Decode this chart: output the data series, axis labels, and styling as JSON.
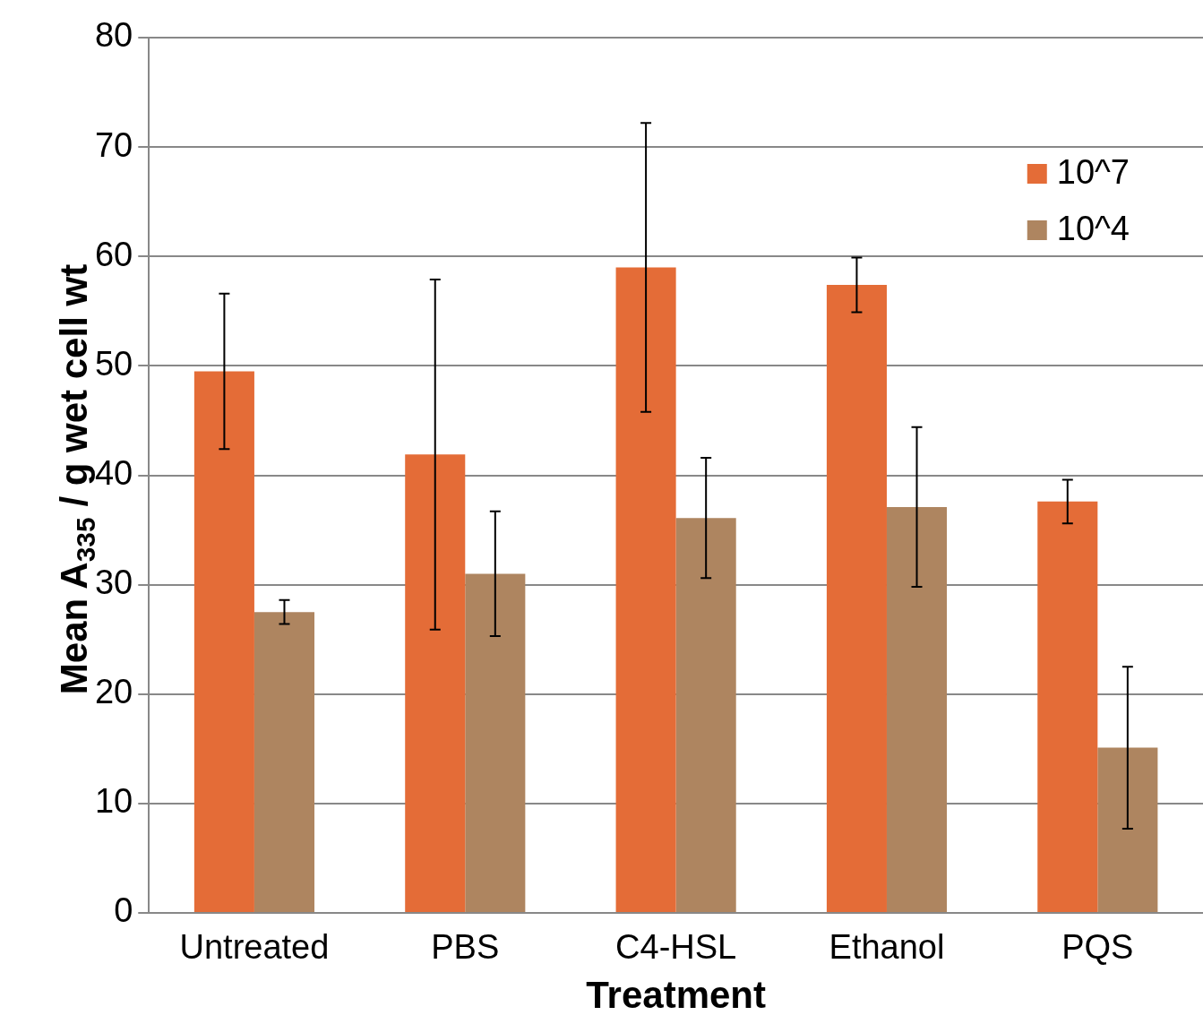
{
  "chart_data": {
    "type": "bar",
    "xlabel": "Treatment",
    "ylabel": "Mean A$_{335}$ / g wet cell wt",
    "categories": [
      "Untreated",
      "PBS",
      "C4-HSL",
      "Ethanol",
      "PQS"
    ],
    "series": [
      {
        "name": "10^7",
        "color": "#e46c37",
        "values": [
          49.5,
          41.9,
          59.0,
          57.4,
          37.6
        ],
        "errors": [
          7.1,
          16.0,
          13.2,
          2.5,
          2.0
        ]
      },
      {
        "name": "10^4",
        "color": "#ae8560",
        "values": [
          27.5,
          31.0,
          36.1,
          37.1,
          15.1
        ],
        "errors": [
          1.1,
          5.7,
          5.5,
          7.3,
          7.4
        ]
      }
    ],
    "ylim": [
      0,
      80
    ],
    "yticks": [
      0,
      10,
      20,
      30,
      40,
      50,
      60,
      70,
      80
    ],
    "grid": "y",
    "legend": "top right"
  }
}
